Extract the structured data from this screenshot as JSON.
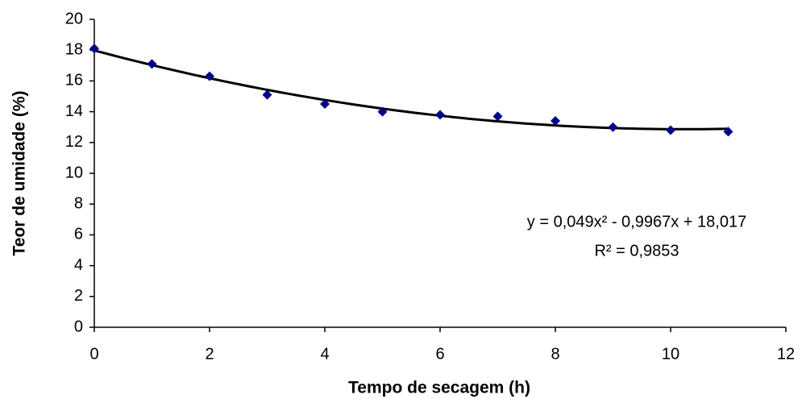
{
  "chart_data": {
    "type": "scatter",
    "xlabel": "Tempo de secagem (h)",
    "ylabel": "Teor de umidade (%)",
    "series": [
      {
        "color": "#00008b",
        "x": [
          0,
          1,
          2,
          3,
          4,
          5,
          6,
          7,
          8,
          9,
          10,
          11
        ],
        "values": [
          18.1,
          17.1,
          16.3,
          15.1,
          14.5,
          14.0,
          13.8,
          13.7,
          13.4,
          13.0,
          12.8,
          12.7
        ]
      }
    ],
    "trendline": {
      "type": "polynomial",
      "order": 2,
      "color": "#000000"
    },
    "annotations": [
      "y = 0,049x² - 0,9967x + 18,017",
      "R² = 0,9853"
    ],
    "xlim": [
      0,
      12
    ],
    "xticks": [
      0,
      2,
      4,
      6,
      8,
      10,
      12
    ],
    "ylim": [
      0,
      20
    ],
    "yticks": [
      0,
      2,
      4,
      6,
      8,
      10,
      12,
      14,
      16,
      18,
      20
    ],
    "grid": false
  }
}
